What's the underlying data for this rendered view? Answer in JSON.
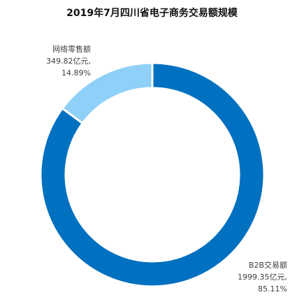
{
  "chart_data": {
    "type": "pie",
    "title": "2019年7月四川省电子商务交易额规模",
    "donut": true,
    "start_angle_deg": 0,
    "direction": "clockwise",
    "slices": [
      {
        "name": "B2B交易额",
        "value_text": "1999.35亿元,",
        "percent_text": "85.11%",
        "value": 1999.35,
        "percent": 85.11,
        "color": "#0070c0"
      },
      {
        "name": "网络零售额",
        "value_text": "349.82亿元,",
        "percent_text": "14.89%",
        "value": 349.82,
        "percent": 14.89,
        "color": "#8fd0f8"
      }
    ]
  }
}
